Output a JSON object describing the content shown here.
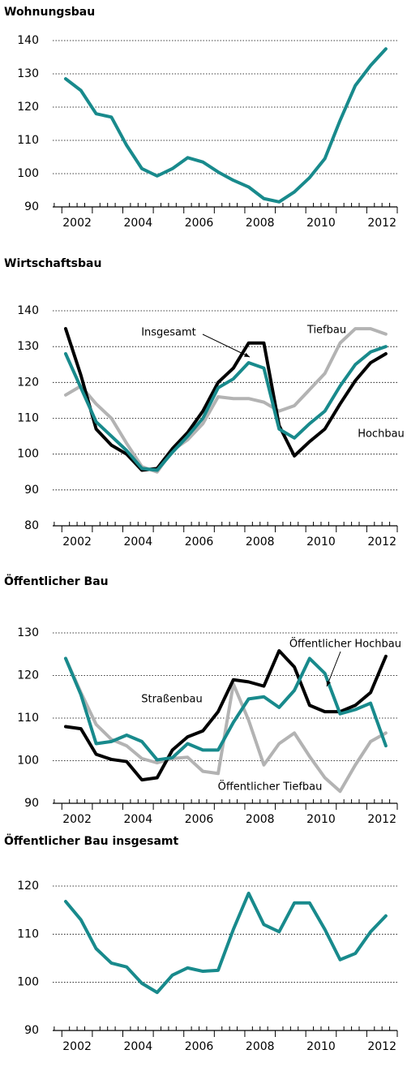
{
  "chart_data": [
    {
      "type": "line",
      "title": "Wohnungsbau",
      "x": [
        2002.125,
        2002.625,
        2003.125,
        2003.625,
        2004.125,
        2004.625,
        2005.125,
        2005.625,
        2006.125,
        2006.625,
        2007.125,
        2007.625,
        2008.125,
        2008.625,
        2009.125,
        2009.625,
        2010.125,
        2010.625,
        2011.125,
        2011.625,
        2012.125,
        2012.625
      ],
      "series": [
        {
          "color": "#188a8c",
          "values": [
            128.5,
            125,
            118,
            117,
            108.5,
            101.5,
            99.3,
            101.5,
            104.8,
            103.5,
            100.5,
            98,
            96,
            92.5,
            91.5,
            94.5,
            98.8,
            104.5,
            116,
            126.5,
            132.5,
            137.5
          ]
        }
      ],
      "xlim": [
        2001.7,
        2013
      ],
      "xticks": [
        {
          "value": 2002.5,
          "label": "2002"
        },
        {
          "value": 2004.5,
          "label": "2004"
        },
        {
          "value": 2006.5,
          "label": "2006"
        },
        {
          "value": 2008.5,
          "label": "2008"
        },
        {
          "value": 2010.5,
          "label": "2010"
        },
        {
          "value": 2012.5,
          "label": "2012"
        }
      ],
      "ylim": [
        90,
        140
      ],
      "yticks": [
        90,
        100,
        110,
        120,
        130,
        140
      ],
      "grid": true
    },
    {
      "type": "line",
      "title": "Wirtschaftsbau",
      "x": [
        2002.125,
        2002.625,
        2003.125,
        2003.625,
        2004.125,
        2004.625,
        2005.125,
        2005.625,
        2006.125,
        2006.625,
        2007.125,
        2007.625,
        2008.125,
        2008.625,
        2009.125,
        2009.625,
        2010.125,
        2010.625,
        2011.125,
        2011.625,
        2012.125,
        2012.625
      ],
      "series": [
        {
          "name": "Tiefbau",
          "color": "#b3b3b3",
          "values": [
            116.5,
            119,
            114,
            110,
            103,
            96.5,
            95,
            101,
            104,
            108.5,
            116,
            115.5,
            115.5,
            114.5,
            112,
            113.5,
            118,
            122.5,
            131,
            135,
            135,
            133.5
          ]
        },
        {
          "name": "Hochbau",
          "color": "#000000",
          "values": [
            135,
            122,
            107,
            102.5,
            100,
            95.5,
            96,
            101.5,
            106,
            112,
            120,
            124,
            131,
            131,
            108,
            99.5,
            103.5,
            107,
            114,
            120.5,
            125.5,
            128
          ]
        },
        {
          "name": "Insgesamt",
          "color": "#188a8c",
          "values": [
            128,
            118.5,
            109,
            105,
            101,
            96,
            95.5,
            100.5,
            105,
            110,
            118.5,
            121,
            125.5,
            124,
            107,
            104.5,
            108.5,
            112,
            119,
            125,
            128.5,
            130
          ]
        }
      ],
      "xlim": [
        2001.7,
        2013
      ],
      "xticks": [
        {
          "value": 2002.5,
          "label": "2002"
        },
        {
          "value": 2004.5,
          "label": "2004"
        },
        {
          "value": 2006.5,
          "label": "2006"
        },
        {
          "value": 2008.5,
          "label": "2008"
        },
        {
          "value": 2010.5,
          "label": "2010"
        },
        {
          "value": 2012.5,
          "label": "2012"
        }
      ],
      "ylim": [
        80,
        140
      ],
      "yticks": [
        80,
        90,
        100,
        110,
        120,
        130,
        140
      ],
      "grid": true
    },
    {
      "type": "line",
      "title": "Öffentlicher Bau",
      "x": [
        2002.125,
        2002.625,
        2003.125,
        2003.625,
        2004.125,
        2004.625,
        2005.125,
        2005.625,
        2006.125,
        2006.625,
        2007.125,
        2007.625,
        2008.125,
        2008.625,
        2009.125,
        2009.625,
        2010.125,
        2010.625,
        2011.125,
        2011.625,
        2012.125,
        2012.625
      ],
      "series": [
        {
          "name": "Öffentlicher Tiefbau",
          "color": "#b3b3b3",
          "values": [
            124,
            116,
            108.5,
            105,
            103.5,
            100.5,
            99.5,
            100.5,
            100.8,
            97.5,
            97,
            118,
            109.5,
            99,
            104,
            106.5,
            101,
            96,
            92.8,
            99,
            104.5,
            106.5
          ]
        },
        {
          "name": "Öffentlicher Hochbau",
          "color": "#000000",
          "values": [
            108,
            107.5,
            101.5,
            100.3,
            99.8,
            95.5,
            96,
            102.5,
            105.6,
            107,
            111.5,
            119,
            118.5,
            117.5,
            125.8,
            122,
            113,
            111.5,
            111.5,
            113,
            116,
            124.5
          ]
        },
        {
          "name": "Straßenbau",
          "color": "#188a8c",
          "values": [
            124,
            115.5,
            104,
            104.5,
            106,
            104.5,
            100.2,
            100.7,
            104,
            102.5,
            102.5,
            109,
            114.5,
            115,
            112.5,
            116.5,
            124,
            120.5,
            111,
            112,
            113.5,
            103.5
          ]
        }
      ],
      "xlim": [
        2001.7,
        2013
      ],
      "xticks": [
        {
          "value": 2002.5,
          "label": "2002"
        },
        {
          "value": 2004.5,
          "label": "2004"
        },
        {
          "value": 2006.5,
          "label": "2006"
        },
        {
          "value": 2008.5,
          "label": "2008"
        },
        {
          "value": 2010.5,
          "label": "2010"
        },
        {
          "value": 2012.5,
          "label": "2012"
        }
      ],
      "ylim": [
        90,
        130
      ],
      "yticks": [
        90,
        100,
        110,
        120,
        130
      ],
      "grid": true
    },
    {
      "type": "line",
      "title": "Öffentlicher Bau insgesamt",
      "x": [
        2002.125,
        2002.625,
        2003.125,
        2003.625,
        2004.125,
        2004.625,
        2005.125,
        2005.625,
        2006.125,
        2006.625,
        2007.125,
        2007.625,
        2008.125,
        2008.625,
        2009.125,
        2009.625,
        2010.125,
        2010.625,
        2011.125,
        2011.625,
        2012.125,
        2012.625
      ],
      "series": [
        {
          "color": "#188a8c",
          "values": [
            116.8,
            113,
            107,
            104,
            103.2,
            99.8,
            97.9,
            101.5,
            103,
            102.3,
            102.5,
            111,
            118.5,
            112,
            110.5,
            116.5,
            116.5,
            111,
            104.7,
            106,
            110.5,
            113.8
          ]
        }
      ],
      "xlim": [
        2001.7,
        2013
      ],
      "xticks": [
        {
          "value": 2002.5,
          "label": "2002"
        },
        {
          "value": 2004.5,
          "label": "2004"
        },
        {
          "value": 2006.5,
          "label": "2006"
        },
        {
          "value": 2008.5,
          "label": "2008"
        },
        {
          "value": 2010.5,
          "label": "2010"
        },
        {
          "value": 2012.5,
          "label": "2012"
        }
      ],
      "ylim": [
        90,
        120
      ],
      "yticks": [
        90,
        100,
        110,
        120
      ],
      "grid": true
    }
  ]
}
